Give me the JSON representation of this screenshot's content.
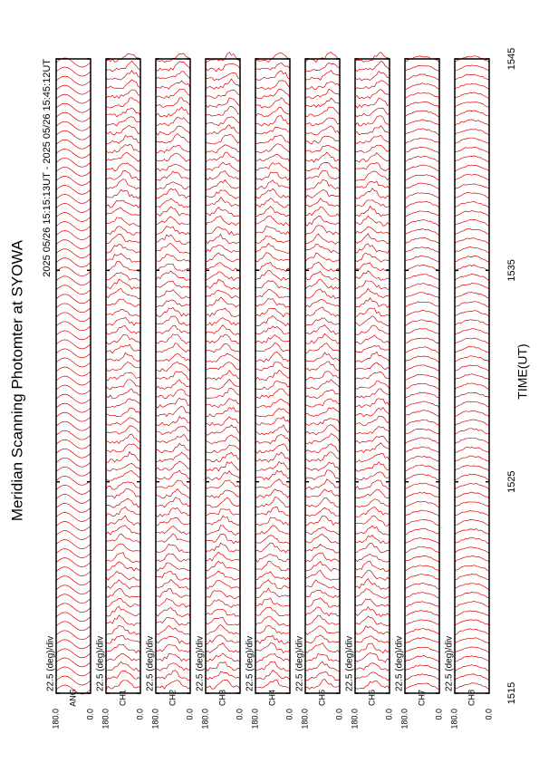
{
  "chart_data": {
    "type": "msp",
    "title": "Meridian Scanning Photomter at SYOWA",
    "subtitle": "2025 05/26 15:15:13UT - 2025 05/26 15:45:12UT",
    "x_label": "TIME(UT)",
    "xlim": [
      1515,
      1545
    ],
    "xticks": [
      1515,
      1525,
      1535,
      1545
    ],
    "ylim": [
      0,
      180
    ],
    "yticks": [
      {
        "value": 0,
        "label": "0.0"
      },
      {
        "value": 180,
        "label": "180.0"
      }
    ],
    "color": "#e00000",
    "panels": [
      {
        "name": "ANG",
        "scale_label": "22.5 (deg)/div"
      },
      {
        "name": "CH1",
        "scale_label": "22.5 (deg)/div"
      },
      {
        "name": "CH2",
        "scale_label": "22.5 (deg)/div"
      },
      {
        "name": "CH3",
        "scale_label": "22.5 (deg)/div"
      },
      {
        "name": "CH4",
        "scale_label": "22.5 (deg)/div"
      },
      {
        "name": "CH5",
        "scale_label": "22.5 (deg)/div"
      },
      {
        "name": "CH6",
        "scale_label": "22.5 (deg)/div"
      },
      {
        "name": "CH7",
        "scale_label": "22.5 (deg)/div"
      },
      {
        "name": "CH8",
        "scale_label": "22.5 (deg)/div"
      }
    ]
  }
}
